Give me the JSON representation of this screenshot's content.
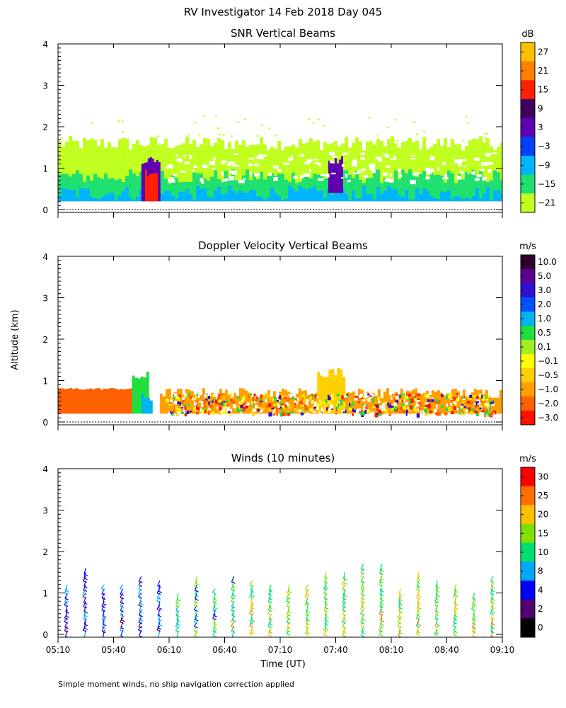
{
  "page": {
    "title": "RV Investigator  14 Feb 2018 Day 045",
    "ylabel": "Altitude (km)",
    "xlabel": "Time (UT)",
    "footnote": "Simple moment winds, no ship navigation correction applied"
  },
  "chart_data": [
    {
      "type": "heatmap",
      "title": "SNR Vertical Beams",
      "colorbar_unit": "dB",
      "colorbar_labels": [
        "27",
        "21",
        "15",
        "9",
        "3",
        "−3",
        "−9",
        "−15",
        "−21"
      ],
      "colorbar_colors": [
        "#ffc000",
        "#ff7f00",
        "#ff2000",
        "#400060",
        "#6000b0",
        "#0040ff",
        "#00b4ff",
        "#20e070",
        "#c0ff20"
      ],
      "x_range": [
        "05:10",
        "09:10"
      ],
      "ylim": [
        0,
        4
      ],
      "yticks": [
        0,
        1,
        2,
        3,
        4
      ],
      "features": [
        {
          "from": "05:10",
          "to": "09:10",
          "alt_from": 0.2,
          "alt_to": 1.6,
          "snr_db": -21
        },
        {
          "from": "05:10",
          "to": "09:10",
          "alt_from": 0.2,
          "alt_to": 0.8,
          "snr_db": -15
        },
        {
          "from": "05:10",
          "to": "09:10",
          "alt_from": 0.2,
          "alt_to": 0.4,
          "snr_db": -9
        },
        {
          "from": "05:55",
          "to": "06:05",
          "alt_from": 0.2,
          "alt_to": 1.2,
          "snr_db": 3
        },
        {
          "from": "05:57",
          "to": "06:03",
          "alt_from": 0.2,
          "alt_to": 0.9,
          "snr_db": 15
        },
        {
          "from": "07:36",
          "to": "07:43",
          "alt_from": 0.4,
          "alt_to": 1.2,
          "snr_db": 3
        }
      ]
    },
    {
      "type": "heatmap",
      "title": "Doppler Velocity Vertical Beams",
      "colorbar_unit": "m/s",
      "colorbar_labels": [
        "10.0",
        "5.0",
        "3.0",
        "2.0",
        "1.0",
        "0.5",
        "0.1",
        "−0.1",
        "−0.5",
        "−1.0",
        "−2.0",
        "−3.0"
      ],
      "colorbar_colors": [
        "#300030",
        "#5a0090",
        "#3010d0",
        "#0050ff",
        "#00b4f0",
        "#20e040",
        "#a0f020",
        "#ffff00",
        "#ffd000",
        "#ffa000",
        "#ff6000",
        "#ff1000"
      ],
      "x_range": [
        "05:10",
        "09:10"
      ],
      "ylim": [
        0,
        4
      ],
      "yticks": [
        0,
        1,
        2,
        3,
        4
      ],
      "features": [
        {
          "from": "05:10",
          "to": "05:50",
          "alt_from": 0.2,
          "alt_to": 0.8,
          "velocity_ms": -2.0
        },
        {
          "from": "05:50",
          "to": "05:58",
          "alt_from": 0.2,
          "alt_to": 1.1,
          "velocity_ms": 0.5
        },
        {
          "from": "05:55",
          "to": "06:00",
          "alt_from": 0.2,
          "alt_to": 0.6,
          "velocity_ms": 1.0
        },
        {
          "from": "06:05",
          "to": "09:10",
          "alt_from": 0.2,
          "alt_to": 0.7,
          "velocity_ms": -1.0
        },
        {
          "from": "07:30",
          "to": "07:45",
          "alt_from": 0.2,
          "alt_to": 1.2,
          "velocity_ms": -0.5
        }
      ]
    },
    {
      "type": "scatter",
      "title": "Winds (10 minutes)",
      "colorbar_unit": "m/s",
      "colorbar_labels": [
        "30",
        "25",
        "20",
        "15",
        "10",
        "8",
        "4",
        "2",
        "0"
      ],
      "colorbar_colors": [
        "#ff0000",
        "#ff7000",
        "#ffc000",
        "#80e000",
        "#00e070",
        "#00a8ff",
        "#0000ff",
        "#500070",
        "#000000"
      ],
      "x_range": [
        "05:10",
        "09:10"
      ],
      "xticks": [
        "05:10",
        "05:40",
        "06:10",
        "06:40",
        "07:10",
        "07:40",
        "08:10",
        "08:40",
        "09:10"
      ],
      "ylim": [
        0,
        4
      ],
      "yticks": [
        0,
        1,
        2,
        3,
        4
      ],
      "profile_interval_min": 10,
      "altitude_step_km": 0.1
    }
  ]
}
